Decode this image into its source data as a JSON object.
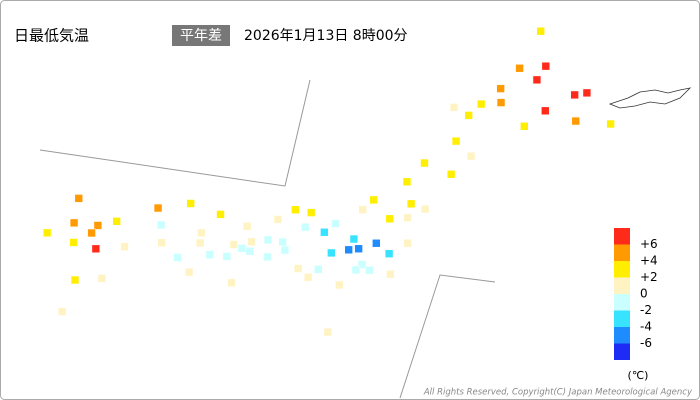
{
  "header": {
    "title": "日最低気温",
    "badge": "平年差",
    "datetime": "2026年1月13日 8時00分"
  },
  "legend": {
    "colors": [
      "#ff2a1a",
      "#ff9a00",
      "#ffee00",
      "#fff3c4",
      "#caffff",
      "#38e3ff",
      "#1e8cff",
      "#1e2bf5"
    ],
    "ticks": [
      {
        "value": 6,
        "label": "+6"
      },
      {
        "value": 4,
        "label": "+4"
      },
      {
        "value": 2,
        "label": "+2"
      },
      0,
      -2,
      -4,
      -6
    ],
    "unit": "(℃)"
  },
  "copyright": "All Rights Reserved, Copyright(C) Japan Meteorological Agency",
  "stations": [
    {
      "lon": 141.7,
      "lat": 45.4,
      "value": 3
    },
    {
      "lon": 142.4,
      "lat": 43.8,
      "value": 7
    },
    {
      "lon": 141.35,
      "lat": 43.06,
      "value": 5
    },
    {
      "lon": 144.27,
      "lat": 44.02,
      "value": 6.5
    },
    {
      "lon": 143.2,
      "lat": 42.92,
      "value": 7
    },
    {
      "lon": 144.38,
      "lat": 42.98,
      "value": 4.5
    },
    {
      "lon": 145.58,
      "lat": 43.33,
      "value": 2.5
    },
    {
      "lon": 140.75,
      "lat": 41.8,
      "value": 3
    },
    {
      "lon": 140.97,
      "lat": 42.32,
      "value": 3
    },
    {
      "lon": 141.63,
      "lat": 43.95,
      "value": 4.5
    },
    {
      "lon": 142.46,
      "lat": 44.35,
      "value": 7
    },
    {
      "lon": 143.9,
      "lat": 43.8,
      "value": 7
    },
    {
      "lon": 141.6,
      "lat": 42.62,
      "value": 5
    },
    {
      "lon": 142.77,
      "lat": 42.16,
      "value": 2.5
    },
    {
      "lon": 140.13,
      "lat": 41.87,
      "value": 1
    },
    {
      "lon": 140.77,
      "lat": 40.82,
      "value": 2.5
    },
    {
      "lon": 141.52,
      "lat": 40.53,
      "value": 1
    },
    {
      "lon": 140.1,
      "lat": 39.72,
      "value": 3
    },
    {
      "lon": 141.17,
      "lat": 39.7,
      "value": 3
    },
    {
      "lon": 139.84,
      "lat": 38.9,
      "value": 2.5
    },
    {
      "lon": 140.35,
      "lat": 38.25,
      "value": 3
    },
    {
      "lon": 140.9,
      "lat": 38.26,
      "value": 1
    },
    {
      "lon": 140.47,
      "lat": 37.76,
      "value": 1
    },
    {
      "lon": 139.9,
      "lat": 37.5,
      "value": 2.5
    },
    {
      "lon": 140.9,
      "lat": 36.95,
      "value": 0.5
    },
    {
      "lon": 139.76,
      "lat": 35.69,
      "value": -1
    },
    {
      "lon": 139.87,
      "lat": 36.55,
      "value": -4.5
    },
    {
      "lon": 139.06,
      "lat": 36.4,
      "value": -2.5
    },
    {
      "lon": 139.38,
      "lat": 36.15,
      "value": -5
    },
    {
      "lon": 140.47,
      "lat": 36.38,
      "value": -3
    },
    {
      "lon": 140.1,
      "lat": 35.6,
      "value": -1
    },
    {
      "lon": 139.65,
      "lat": 35.44,
      "value": -0.5
    },
    {
      "lon": 140.86,
      "lat": 35.74,
      "value": 0.5
    },
    {
      "lon": 139.07,
      "lat": 35.99,
      "value": -5
    },
    {
      "lon": 138.55,
      "lat": 35.67,
      "value": -3
    },
    {
      "lon": 139.05,
      "lat": 37.9,
      "value": 3
    },
    {
      "lon": 138.85,
      "lat": 37.45,
      "value": 1
    },
    {
      "lon": 137.2,
      "lat": 36.7,
      "value": 3
    },
    {
      "lon": 136.63,
      "lat": 36.59,
      "value": 2.5
    },
    {
      "lon": 136.22,
      "lat": 36.06,
      "value": 1
    },
    {
      "lon": 138.19,
      "lat": 36.66,
      "value": -1
    },
    {
      "lon": 137.97,
      "lat": 36.24,
      "value": -2.5
    },
    {
      "lon": 137.25,
      "lat": 36.16,
      "value": -1
    },
    {
      "lon": 136.76,
      "lat": 35.4,
      "value": -0.5
    },
    {
      "lon": 136.97,
      "lat": 35.17,
      "value": -1
    },
    {
      "lon": 138.4,
      "lat": 34.98,
      "value": -1
    },
    {
      "lon": 137.72,
      "lat": 34.75,
      "value": 0.5
    },
    {
      "lon": 138.2,
      "lat": 34.6,
      "value": 1
    },
    {
      "lon": 135.52,
      "lat": 34.68,
      "value": -1
    },
    {
      "lon": 135.73,
      "lat": 35.01,
      "value": 0.5
    },
    {
      "lon": 135.19,
      "lat": 34.7,
      "value": 0.5
    },
    {
      "lon": 135.83,
      "lat": 34.69,
      "value": -1
    },
    {
      "lon": 135.16,
      "lat": 34.23,
      "value": -0.5
    },
    {
      "lon": 135.76,
      "lat": 33.45,
      "value": 1
    },
    {
      "lon": 136.51,
      "lat": 34.73,
      "value": -1
    },
    {
      "lon": 136.24,
      "lat": 35.28,
      "value": -1
    },
    {
      "lon": 135.32,
      "lat": 35.45,
      "value": 1
    },
    {
      "lon": 134.24,
      "lat": 35.49,
      "value": 3
    },
    {
      "lon": 133.07,
      "lat": 35.46,
      "value": 3
    },
    {
      "lon": 132.46,
      "lat": 34.4,
      "value": -0.5
    },
    {
      "lon": 133.92,
      "lat": 34.66,
      "value": 0.5
    },
    {
      "lon": 130.93,
      "lat": 33.95,
      "value": 3
    },
    {
      "lon": 132.07,
      "lat": 34.9,
      "value": 4.5
    },
    {
      "lon": 134.05,
      "lat": 34.32,
      "value": 0.5
    },
    {
      "lon": 132.78,
      "lat": 33.84,
      "value": 1
    },
    {
      "lon": 133.55,
      "lat": 33.57,
      "value": -1
    },
    {
      "lon": 134.57,
      "lat": 34.07,
      "value": -0.5
    },
    {
      "lon": 134.18,
      "lat": 33.25,
      "value": 1
    },
    {
      "lon": 130.38,
      "lat": 33.58,
      "value": 4.5
    },
    {
      "lon": 130.3,
      "lat": 33.26,
      "value": 4.5
    },
    {
      "lon": 129.87,
      "lat": 32.73,
      "value": 3
    },
    {
      "lon": 130.71,
      "lat": 32.81,
      "value": 6.5
    },
    {
      "lon": 131.62,
      "lat": 33.24,
      "value": 1
    },
    {
      "lon": 131.41,
      "lat": 31.94,
      "value": 1
    },
    {
      "lon": 130.55,
      "lat": 31.55,
      "value": 3
    },
    {
      "lon": 129.55,
      "lat": 33.36,
      "value": 4.5
    },
    {
      "lon": 129.29,
      "lat": 34.2,
      "value": 4.5
    },
    {
      "lon": 128.83,
      "lat": 32.7,
      "value": 3
    },
    {
      "lon": 130.66,
      "lat": 30.38,
      "value": 1
    },
    {
      "lon": 139.78,
      "lat": 33.1,
      "value": 1
    },
    {
      "lon": 139.36,
      "lat": 34.75,
      "value": 1
    }
  ]
}
